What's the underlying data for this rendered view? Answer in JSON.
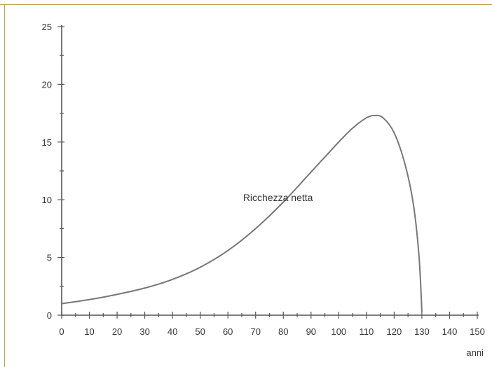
{
  "chart_data": {
    "type": "line",
    "title": "",
    "xlabel": "anni",
    "ylabel": "",
    "xlim": [
      0,
      150
    ],
    "ylim": [
      0,
      25
    ],
    "x_ticks": [
      0,
      10,
      20,
      30,
      40,
      50,
      60,
      70,
      80,
      90,
      100,
      110,
      120,
      130,
      140,
      150
    ],
    "y_ticks": [
      0,
      5,
      10,
      15,
      20,
      25
    ],
    "grid": false,
    "series": [
      {
        "name": "Ricchezza netta",
        "color": "#777777",
        "x": [
          0,
          10,
          20,
          30,
          40,
          50,
          60,
          70,
          80,
          90,
          100,
          105,
          110,
          113,
          116,
          120,
          124,
          127,
          129,
          130
        ],
        "y": [
          1.0,
          1.35,
          1.8,
          2.35,
          3.1,
          4.15,
          5.6,
          7.5,
          9.8,
          12.4,
          15.0,
          16.2,
          17.1,
          17.3,
          17.1,
          15.8,
          13.0,
          9.5,
          5.0,
          0.3
        ]
      }
    ],
    "annotations": [
      {
        "text": "Ricchezza netta",
        "x": 68,
        "y": 10
      }
    ]
  }
}
